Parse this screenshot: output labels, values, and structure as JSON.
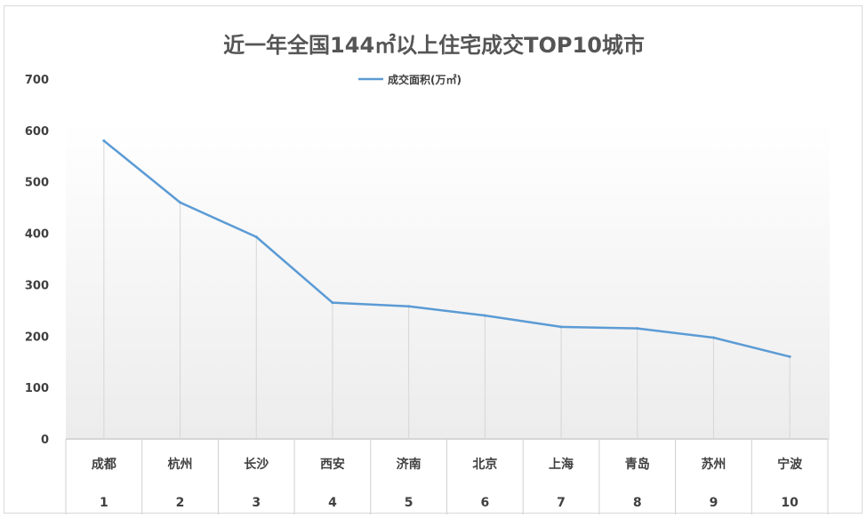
{
  "chart_data": {
    "type": "line",
    "title": "近一年全国144㎡以上住宅成交TOP10城市",
    "legend": {
      "position": "top",
      "label": "成交面积(万㎡)"
    },
    "series": [
      {
        "name": "成交面积(万㎡)",
        "color": "#5b9bd5",
        "values": [
          580,
          460,
          393,
          265,
          258,
          240,
          218,
          215,
          197,
          160
        ]
      }
    ],
    "categories": [
      "成都",
      "杭州",
      "长沙",
      "西安",
      "济南",
      "北京",
      "上海",
      "青岛",
      "苏州",
      "宁波"
    ],
    "ranks": [
      "1",
      "2",
      "3",
      "4",
      "5",
      "6",
      "7",
      "8",
      "9",
      "10"
    ],
    "ylim": [
      0,
      700
    ],
    "yticks": [
      "0",
      "100",
      "200",
      "300",
      "400",
      "500",
      "600",
      "700"
    ],
    "drop_lines": true,
    "plot_background": "gradient-gray"
  }
}
